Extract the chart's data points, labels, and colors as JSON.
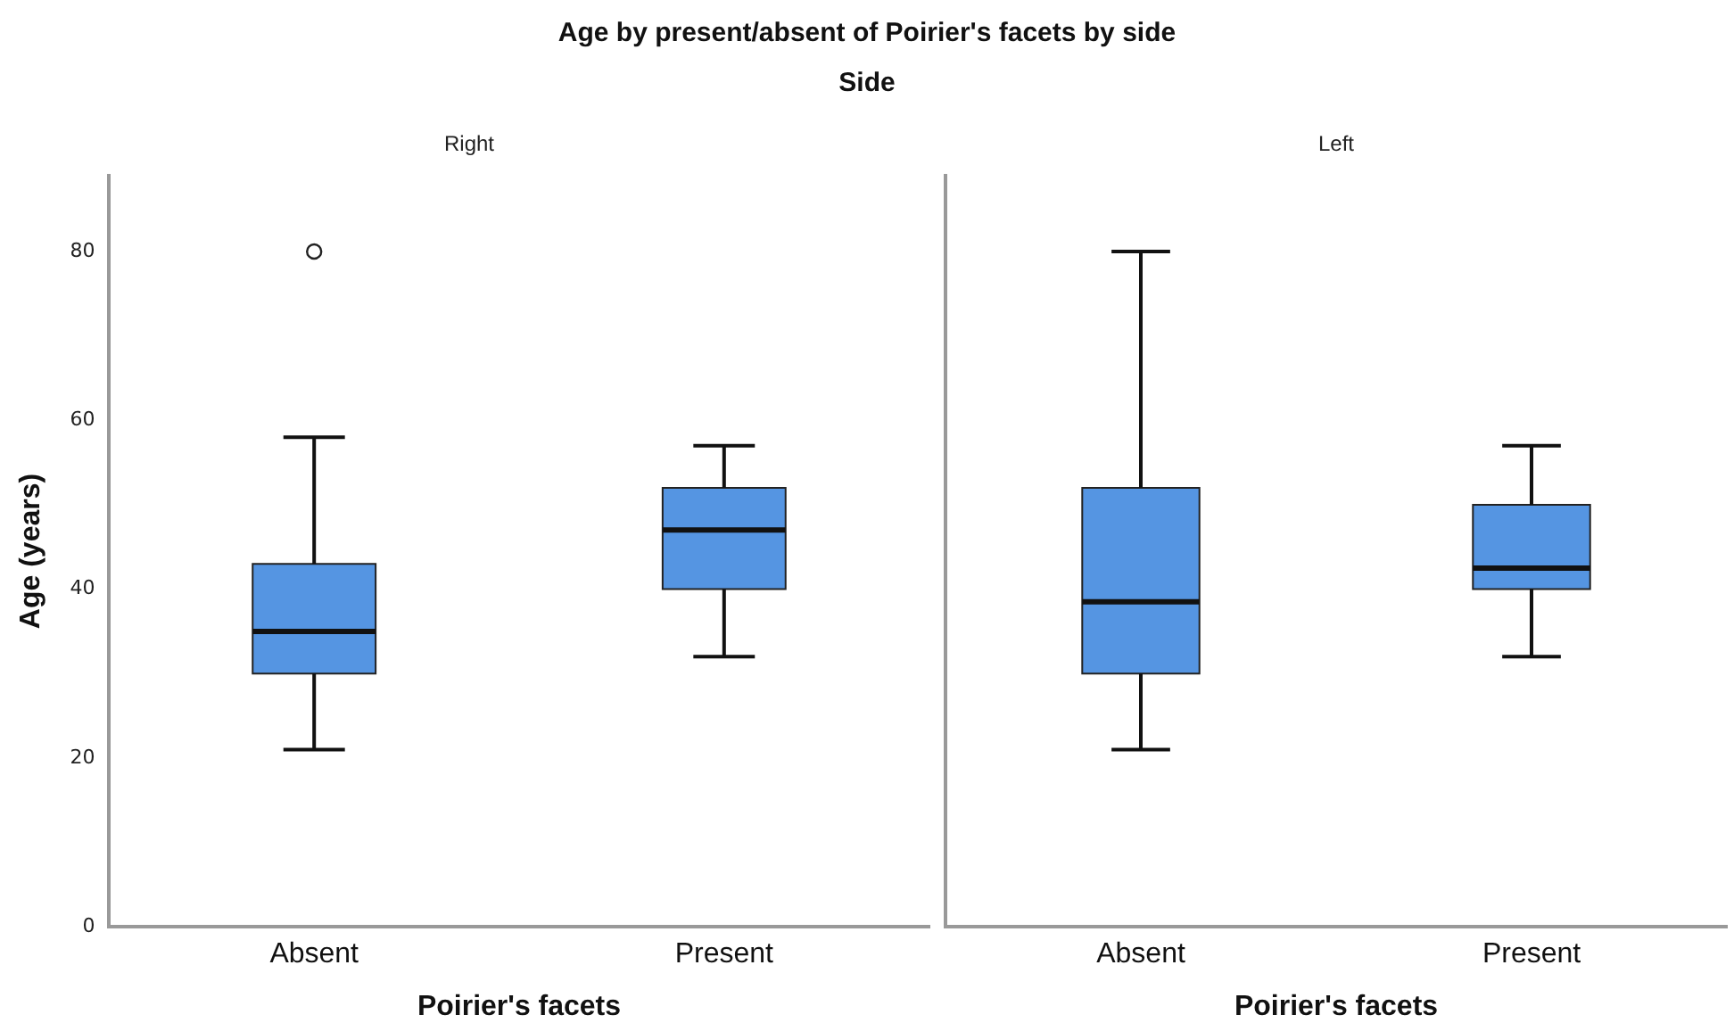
{
  "chart_data": [
    {
      "type": "box",
      "title": "Age by present/absent of Poirier's facets by side",
      "subtitle": "Side",
      "annotations": [
        "Right"
      ],
      "xlabel": "Poirier's facets",
      "ylabel": "Age (years)",
      "categories": [
        "Absent",
        "Present"
      ],
      "ylim": [
        0,
        89
      ],
      "yticks": [
        0,
        20,
        40,
        60,
        80
      ],
      "grid": false,
      "legend": false,
      "series": [
        {
          "color": "#5595e2",
          "boxes": [
            {
              "low": 21,
              "q1": 30,
              "median": 35,
              "q3": 43,
              "high": 58,
              "outliers": [
                80
              ]
            },
            {
              "low": 32,
              "q1": 40,
              "median": 47,
              "q3": 52,
              "high": 57
            }
          ]
        }
      ]
    },
    {
      "type": "box",
      "annotations": [
        "Left"
      ],
      "xlabel": "Poirier's facets",
      "categories": [
        "Absent",
        "Present"
      ],
      "ylim": [
        0,
        89
      ],
      "yticks": [
        0,
        20,
        40,
        60,
        80
      ],
      "tick_labels": "x",
      "grid": false,
      "legend": false,
      "series": [
        {
          "color": "#5595e2",
          "boxes": [
            {
              "low": 21,
              "q1": 30,
              "median": 38.5,
              "q3": 52,
              "high": 80
            },
            {
              "low": 32,
              "q1": 40,
              "median": 42.5,
              "q3": 50,
              "high": 57
            }
          ]
        }
      ]
    }
  ]
}
